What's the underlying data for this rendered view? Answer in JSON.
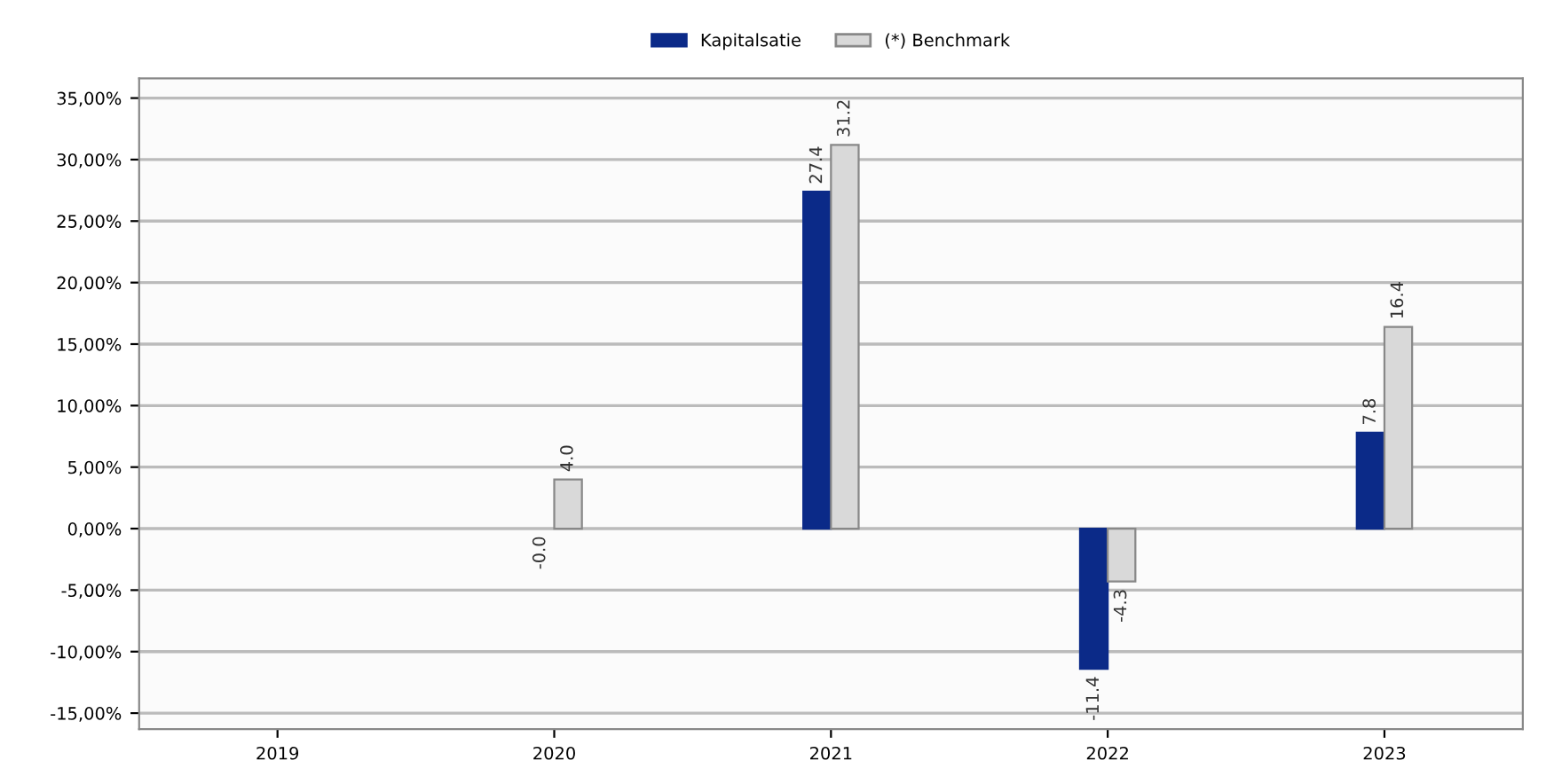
{
  "chart_data": {
    "type": "bar",
    "categories": [
      "2019",
      "2020",
      "2021",
      "2022",
      "2023"
    ],
    "series": [
      {
        "name": "Kapitalsatie",
        "color": "#0b2a88",
        "values": [
          0,
          0,
          27.4,
          -11.4,
          7.8
        ],
        "value_labels": [
          null,
          "-0.0",
          "27.4",
          "-11.4",
          "7.8"
        ]
      },
      {
        "name": "(*) Benchmark",
        "color": "#d9d9d9",
        "values": [
          0,
          4.0,
          31.2,
          -4.3,
          16.4
        ],
        "value_labels": [
          null,
          "4.0",
          "31.2",
          "-4.3",
          "16.4"
        ]
      }
    ],
    "ylim": [
      -16.3,
      36.6
    ],
    "yticks": [
      {
        "value": -15,
        "label": "-15,00%"
      },
      {
        "value": -10,
        "label": "-10,00%"
      },
      {
        "value": -5,
        "label": "-5,00%"
      },
      {
        "value": 0,
        "label": "0,00%"
      },
      {
        "value": 5,
        "label": "5,00%"
      },
      {
        "value": 10,
        "label": "10,00%"
      },
      {
        "value": 15,
        "label": "15,00%"
      },
      {
        "value": 20,
        "label": "20,00%"
      },
      {
        "value": 25,
        "label": "25,00%"
      },
      {
        "value": 30,
        "label": "30,00%"
      },
      {
        "value": 35,
        "label": "35,00%"
      }
    ],
    "grid": "y",
    "legend": "top"
  }
}
